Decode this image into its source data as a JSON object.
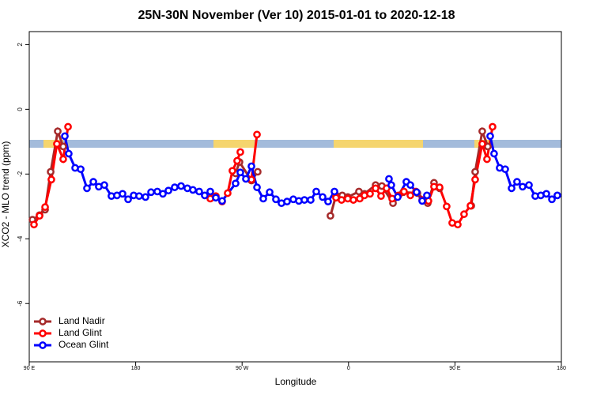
{
  "chart_data": {
    "type": "line",
    "title": "25N-30N November (Ver 10)   2015-01-01 to 2020-12-18",
    "xlabel": "Longitude",
    "ylabel": "XCO2 - MLO trend (ppm)",
    "xlim": [
      90,
      540
    ],
    "ylim": [
      -7.8,
      2.4
    ],
    "xticks": [
      {
        "value": 90,
        "label": "90 E"
      },
      {
        "value": 180,
        "label": "180"
      },
      {
        "value": 270,
        "label": "90 W"
      },
      {
        "value": 360,
        "label": "0"
      },
      {
        "value": 450,
        "label": "90 E"
      },
      {
        "value": 540,
        "label": "180"
      }
    ],
    "yticks": [
      2,
      0,
      -2,
      -4,
      -6
    ],
    "legend": "bottom-left",
    "series": [
      {
        "name": "Land Nadir",
        "color": "#a52a2a",
        "x": [
          92.7,
          98.7,
          103.4,
          108.1,
          114.1,
          118.7,
          null,
          264.5,
          267.8,
          277.9,
          283.2,
          null,
          344.7,
          349.4,
          354.7,
          359.4,
          368.8,
          373.5,
          382.9,
          388.2,
          397.6,
          406.3,
          418.3,
          427.0,
          432.3,
          437.0,
          null,
          463.8,
          467.1,
          473.1,
          477.8
        ],
        "values": [
          -3.41,
          -3.27,
          -3.1,
          -1.93,
          -0.68,
          -1.15,
          null,
          -1.98,
          -1.63,
          -2.2,
          -1.93,
          null,
          -3.29,
          -2.66,
          -2.66,
          -2.71,
          -2.54,
          -2.61,
          -2.34,
          -2.37,
          -2.9,
          -2.56,
          -2.59,
          -2.9,
          -2.27,
          -2.44,
          null,
          -2.98,
          -1.93,
          -0.68,
          -1.15
        ]
      },
      {
        "name": "Land Glint",
        "color": "#ff0000",
        "x": [
          94.0,
          98.7,
          103.4,
          108.7,
          113.4,
          118.7,
          122.8,
          null,
          243.1,
          247.8,
          253.1,
          257.8,
          261.8,
          265.8,
          268.5,
          null,
          277.9,
          282.6,
          null,
          349.4,
          354.1,
          359.4,
          364.1,
          369.5,
          373.5,
          378.2,
          382.9,
          387.5,
          392.2,
          396.9,
          402.3,
          406.9,
          412.3,
          417.0,
          422.3,
          427.6,
          432.3,
          437.0,
          443.0,
          447.7,
          452.4,
          457.7,
          463.1,
          467.1,
          473.1,
          477.1,
          481.8
        ],
        "values": [
          -3.56,
          -3.29,
          -3.02,
          -2.17,
          -1.07,
          -1.54,
          -0.54,
          null,
          -2.76,
          -2.68,
          -2.85,
          -2.59,
          -1.9,
          -1.59,
          -1.32,
          null,
          -2.17,
          -0.78,
          null,
          -2.73,
          -2.8,
          -2.76,
          -2.8,
          -2.76,
          -2.66,
          -2.61,
          -2.44,
          -2.68,
          -2.44,
          -2.76,
          -2.66,
          -2.54,
          -2.66,
          -2.54,
          -2.8,
          -2.83,
          -2.39,
          -2.41,
          -3.0,
          -3.51,
          -3.56,
          -3.24,
          -2.98,
          -2.17,
          -1.07,
          -1.54,
          -0.54
        ]
      },
      {
        "name": "Ocean Glint",
        "color": "#0000ff",
        "x": [
          120.1,
          123.4,
          128.8,
          133.5,
          138.8,
          144.2,
          148.8,
          153.5,
          159.5,
          164.2,
          168.9,
          173.6,
          178.3,
          182.9,
          188.3,
          193.0,
          198.3,
          203.0,
          207.7,
          213.0,
          218.4,
          223.7,
          228.4,
          233.7,
          238.4,
          243.1,
          247.8,
          253.1,
          264.5,
          268.5,
          273.2,
          277.9,
          282.6,
          287.9,
          293.3,
          298.6,
          303.3,
          308.0,
          313.3,
          318.0,
          322.7,
          328.0,
          332.7,
          338.1,
          342.7,
          348.1,
          null,
          394.2,
          396.2,
          401.6,
          408.9,
          412.3,
          417.6,
          422.3,
          426.3,
          null,
          479.8,
          483.1,
          487.8,
          492.5,
          497.9,
          502.5,
          507.2,
          512.6,
          517.9,
          522.6,
          527.3,
          532.0,
          536.6
        ],
        "values": [
          -0.83,
          -1.37,
          -1.81,
          -1.85,
          -2.44,
          -2.24,
          -2.39,
          -2.34,
          -2.68,
          -2.66,
          -2.61,
          -2.78,
          -2.66,
          -2.68,
          -2.71,
          -2.56,
          -2.54,
          -2.61,
          -2.51,
          -2.41,
          -2.37,
          -2.44,
          -2.49,
          -2.54,
          -2.66,
          -2.54,
          -2.73,
          -2.83,
          -2.29,
          -1.95,
          -2.15,
          -1.76,
          -2.41,
          -2.76,
          -2.56,
          -2.78,
          -2.9,
          -2.85,
          -2.78,
          -2.83,
          -2.8,
          -2.8,
          -2.54,
          -2.71,
          -2.85,
          -2.54,
          null,
          -2.15,
          -2.34,
          -2.71,
          -2.24,
          -2.34,
          -2.56,
          -2.83,
          -2.66,
          null,
          -0.83,
          -1.37,
          -1.81,
          -1.85,
          -2.44,
          -2.24,
          -2.39,
          -2.34,
          -2.68,
          -2.66,
          -2.61,
          -2.78,
          -2.66
        ]
      }
    ]
  }
}
